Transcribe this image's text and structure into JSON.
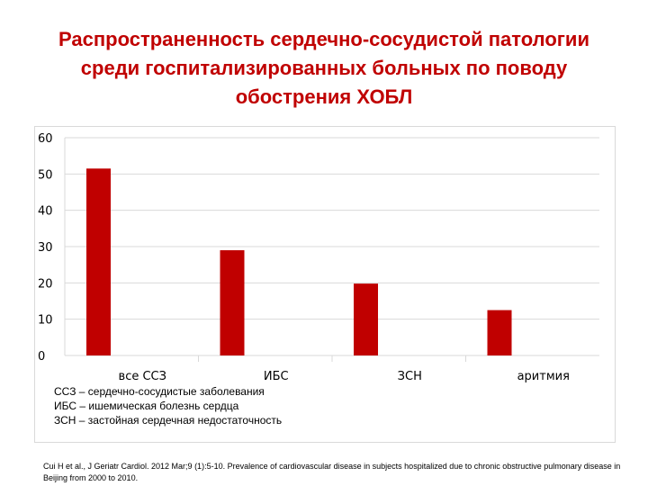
{
  "title": "Распространенность сердечно-сосудистой патологии среди госпитализированных больных по поводу обострения ХОБЛ",
  "chart_data": {
    "type": "bar",
    "categories": [
      "все ССЗ",
      "ИБС",
      "ЗСН",
      "аритмия"
    ],
    "values": [
      51.5,
      29,
      19.8,
      12.5
    ],
    "ylim": [
      0,
      60
    ],
    "yticks": [
      0,
      10,
      20,
      30,
      40,
      50,
      60
    ],
    "grid": true,
    "bar_color": "#c00000",
    "grid_color": "#d9d9d9"
  },
  "legend_notes": [
    "ССЗ – сердечно-сосудистые заболевания",
    "ИБС – ишемическая болезнь сердца",
    "ЗСН – застойная сердечная недостаточность"
  ],
  "citation": "Cui H et al., J Geriatr Cardiol. 2012 Mar;9 (1):5-10. Prevalence of cardiovascular disease in subjects hospitalized due to chronic obstructive pulmonary disease in Beijing from 2000 to 2010.",
  "colors": {
    "title": "#c00000"
  }
}
